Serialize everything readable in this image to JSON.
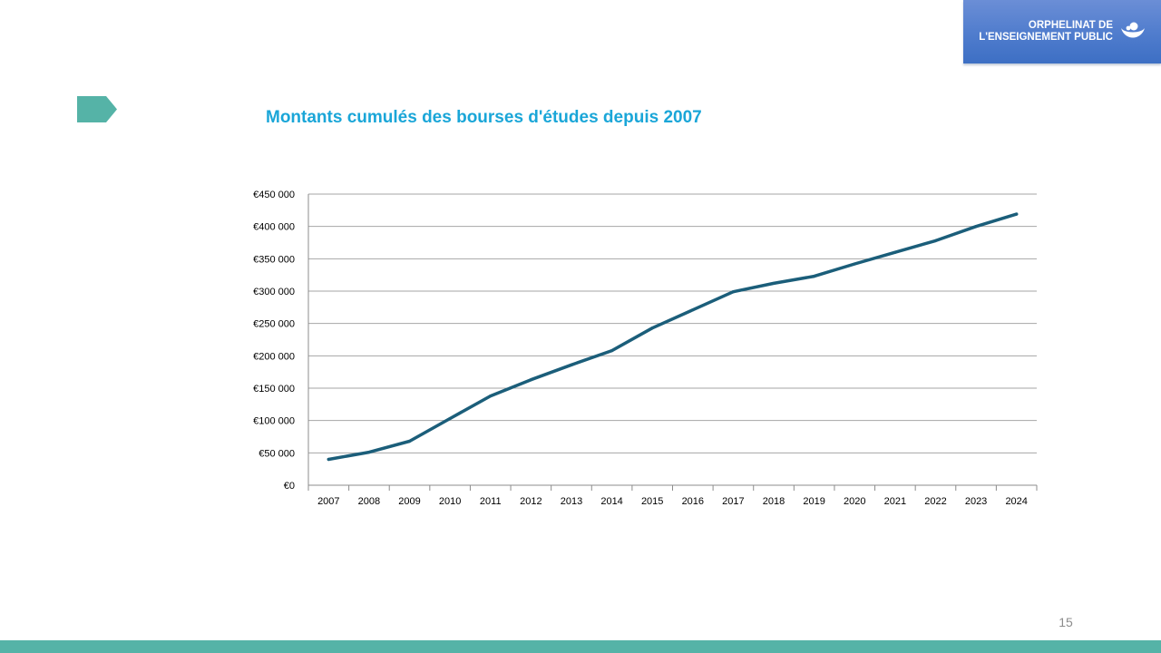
{
  "logo": {
    "line1": "ORPHELINAT DE",
    "line2": "L'ENSEIGNEMENT PUBLIC",
    "background": "#4f7ccd",
    "icon": "hands-icon"
  },
  "accent_color": "#55b3a7",
  "title": "Montants cumulés des bourses d'études depuis 2007",
  "title_color": "#1aa6d8",
  "page_number": "15",
  "chart_data": {
    "type": "line",
    "title": "Montants cumulés des bourses d'études depuis 2007",
    "categories": [
      "2007",
      "2008",
      "2009",
      "2010",
      "2011",
      "2012",
      "2013",
      "2014",
      "2015",
      "2016",
      "2017",
      "2018",
      "2019",
      "2020",
      "2021",
      "2022",
      "2023",
      "2024"
    ],
    "series": [
      {
        "values": [
          40000,
          51000,
          68000,
          103000,
          138000,
          163000,
          186000,
          208000,
          243000,
          271000,
          299000,
          312000,
          323000,
          342000,
          360000,
          378000,
          400000,
          419000
        ],
        "color": "#1b5e7a"
      }
    ],
    "xlabel": "",
    "ylabel": "",
    "ylim": [
      0,
      450000
    ],
    "yticks": [
      0,
      50000,
      100000,
      150000,
      200000,
      250000,
      300000,
      350000,
      400000,
      450000
    ],
    "ytick_labels": [
      "€0",
      "€50 000",
      "€100 000",
      "€150 000",
      "€200 000",
      "€250 000",
      "€300 000",
      "€350 000",
      "€400 000",
      "€450 000"
    ],
    "grid": true,
    "legend": "none"
  }
}
